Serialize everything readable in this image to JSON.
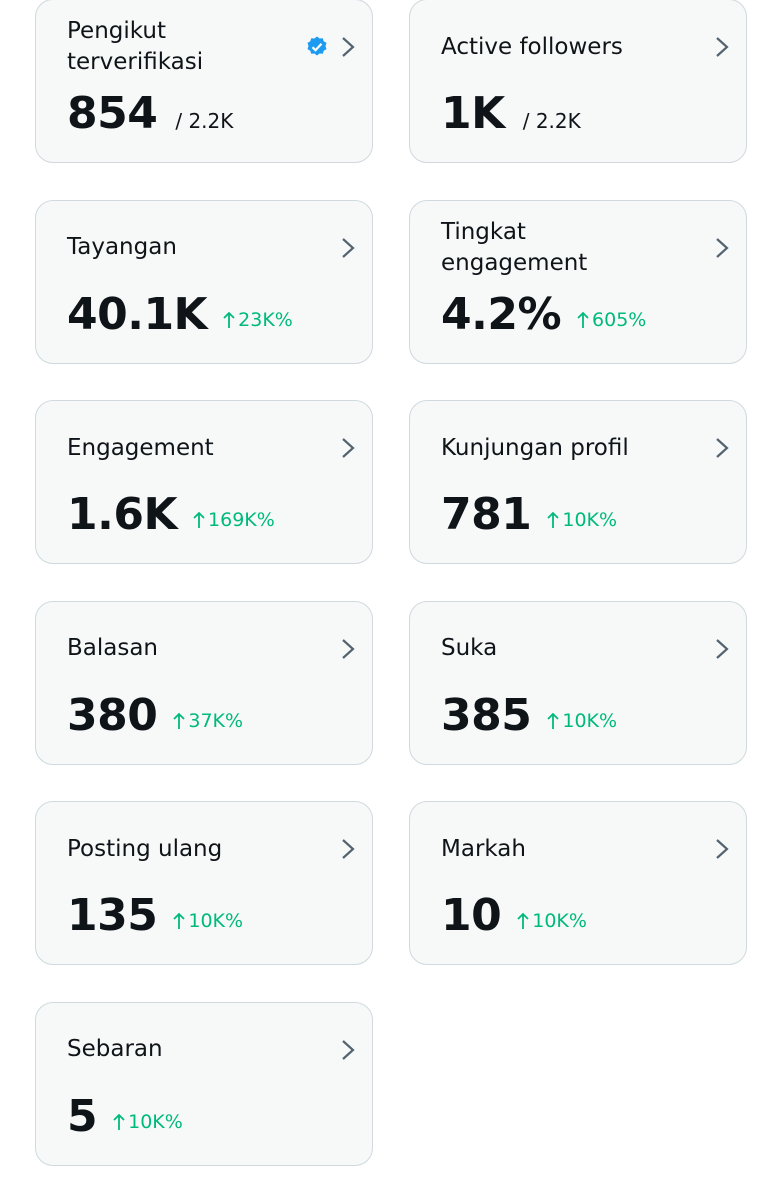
{
  "cards": [
    {
      "label": "Pengikut terverifikasi",
      "value": "854",
      "sub": "/ 2.2K",
      "verified": true
    },
    {
      "label": "Active followers",
      "value": "1K",
      "sub": "/ 2.2K"
    },
    {
      "label": "Tayangan",
      "value": "40.1K",
      "change": "23K%"
    },
    {
      "label": "Tingkat engagement",
      "value": "4.2%",
      "change": "605%"
    },
    {
      "label": "Engagement",
      "value": "1.6K",
      "change": "169K%"
    },
    {
      "label": "Kunjungan profil",
      "value": "781",
      "change": "10K%"
    },
    {
      "label": "Balasan",
      "value": "380",
      "change": "37K%"
    },
    {
      "label": "Suka",
      "value": "385",
      "change": "10K%"
    },
    {
      "label": "Posting ulang",
      "value": "135",
      "change": "10K%"
    },
    {
      "label": "Markah",
      "value": "10",
      "change": "10K%"
    },
    {
      "label": "Sebaran",
      "value": "5",
      "change": "10K%"
    }
  ]
}
